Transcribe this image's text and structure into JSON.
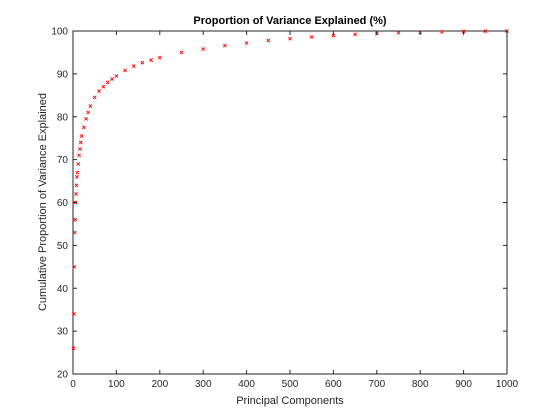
{
  "chart_data": {
    "type": "scatter",
    "title": "Proportion of Variance Explained (%)",
    "xlabel": "Principal Components",
    "ylabel": "Cumulative Proportion of Variance Explained",
    "xlim": [
      0,
      1000
    ],
    "ylim": [
      20,
      100
    ],
    "x_ticks": [
      "0",
      "100",
      "200",
      "300",
      "400",
      "500",
      "600",
      "700",
      "800",
      "900",
      "1000"
    ],
    "y_ticks": [
      "20",
      "30",
      "40",
      "50",
      "60",
      "70",
      "80",
      "90",
      "100"
    ],
    "grid": false,
    "legend": "none",
    "series": [
      {
        "color": "#ff0000",
        "marker": "x",
        "x": [
          1,
          2,
          3,
          4,
          5,
          6,
          7,
          8,
          9,
          10,
          12,
          14,
          16,
          18,
          20,
          25,
          30,
          35,
          40,
          50,
          60,
          70,
          80,
          90,
          100,
          120,
          140,
          160,
          180,
          200,
          250,
          300,
          350,
          400,
          450,
          500,
          550,
          600,
          650,
          700,
          750,
          800,
          850,
          900,
          950,
          1000
        ],
        "y": [
          26.0,
          34.0,
          45.0,
          53.0,
          56.0,
          60.0,
          62.0,
          64.0,
          66.0,
          67.0,
          69.0,
          71.0,
          72.5,
          74.0,
          75.5,
          77.5,
          79.5,
          81.0,
          82.5,
          84.5,
          86.0,
          87.0,
          88.0,
          88.8,
          89.5,
          90.8,
          91.8,
          92.6,
          93.2,
          93.8,
          95.0,
          95.8,
          96.6,
          97.2,
          97.8,
          98.2,
          98.6,
          98.9,
          99.2,
          99.4,
          99.6,
          99.7,
          99.8,
          99.9,
          99.95,
          100.0
        ]
      }
    ]
  }
}
